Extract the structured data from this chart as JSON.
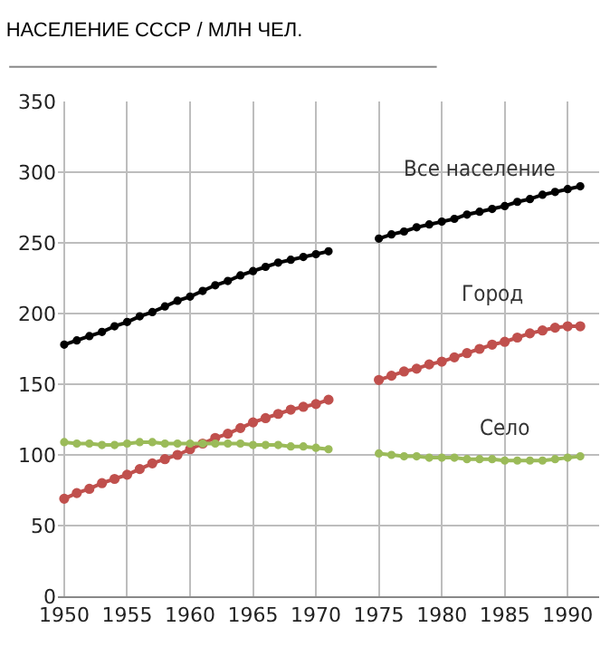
{
  "chart_data": {
    "type": "line",
    "title": "НАСЕЛЕНИЕ СССР / МЛН ЧЕЛ.",
    "x": [
      1950,
      1951,
      1952,
      1953,
      1954,
      1955,
      1956,
      1957,
      1958,
      1959,
      1960,
      1961,
      1962,
      1963,
      1964,
      1965,
      1966,
      1967,
      1968,
      1969,
      1970,
      1971,
      1972,
      1973,
      1974,
      1975,
      1976,
      1977,
      1978,
      1979,
      1980,
      1981,
      1982,
      1983,
      1984,
      1985,
      1986,
      1987,
      1988,
      1989,
      1990,
      1991
    ],
    "series": [
      {
        "name": "Все население",
        "color": "#000000",
        "values": [
          178,
          181,
          184,
          187,
          191,
          194,
          198,
          201,
          205,
          209,
          212,
          216,
          220,
          223,
          227,
          230,
          233,
          236,
          238,
          240,
          242,
          244,
          null,
          null,
          null,
          253,
          256,
          258,
          261,
          263,
          265,
          267,
          270,
          272,
          274,
          276,
          279,
          281,
          284,
          286,
          288,
          290
        ]
      },
      {
        "name": "Город",
        "color": "#c0504d",
        "values": [
          69,
          73,
          76,
          80,
          83,
          86,
          90,
          94,
          97,
          100,
          104,
          108,
          112,
          115,
          119,
          123,
          126,
          129,
          132,
          134,
          136,
          139,
          null,
          null,
          null,
          153,
          156,
          159,
          161,
          164,
          166,
          169,
          172,
          175,
          178,
          180,
          183,
          186,
          188,
          190,
          191,
          191
        ]
      },
      {
        "name": "Село",
        "color": "#9bbb59",
        "values": [
          109,
          108,
          108,
          107,
          107,
          108,
          109,
          109,
          108,
          108,
          108,
          108,
          108,
          108,
          108,
          107,
          107,
          107,
          106,
          106,
          105,
          104,
          null,
          null,
          null,
          101,
          100,
          99,
          99,
          98,
          98,
          98,
          97,
          97,
          97,
          96,
          96,
          96,
          96,
          97,
          98,
          99
        ]
      }
    ],
    "xlim": [
      1949.5,
      1992.5
    ],
    "xticks": [
      1950,
      1955,
      1960,
      1965,
      1970,
      1975,
      1980,
      1985,
      1990
    ],
    "ylim": [
      0,
      350
    ],
    "yticks": [
      0,
      50,
      100,
      150,
      200,
      250,
      300,
      350
    ],
    "grid": true,
    "legend": false,
    "marker": "circle",
    "line_style": "solid"
  }
}
